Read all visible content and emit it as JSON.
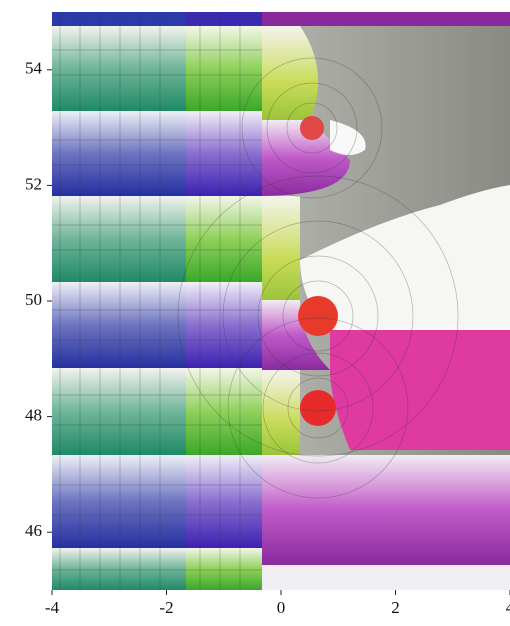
{
  "chart_data": {
    "type": "domain-coloring",
    "xlim": [
      -4,
      4
    ],
    "xticks": [
      -4,
      -2,
      0,
      2,
      4
    ],
    "ylim": [
      45,
      55
    ],
    "yticks": [
      46,
      48,
      50,
      52,
      54
    ]
  }
}
